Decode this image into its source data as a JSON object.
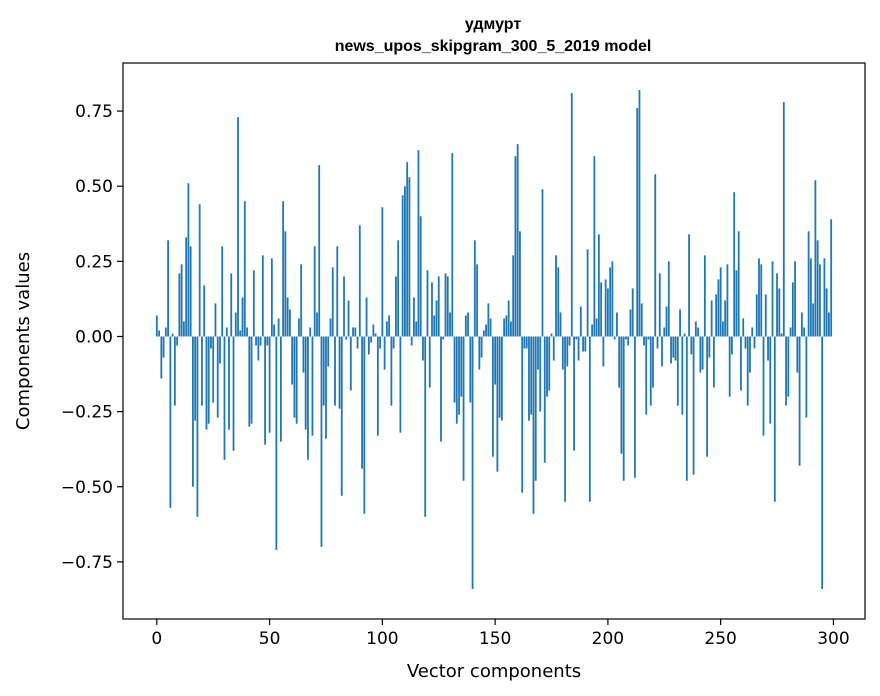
{
  "chart_data": {
    "type": "bar",
    "title": "удмурт",
    "subtitle": "news_upos_skipgram_300_5_2019 model",
    "xlabel": "Vector components",
    "ylabel": "Components values",
    "xlim": [
      -15,
      314
    ],
    "ylim": [
      -0.94,
      0.91
    ],
    "xticks": [
      0,
      50,
      100,
      150,
      200,
      250,
      300
    ],
    "xtick_labels": [
      "0",
      "50",
      "100",
      "150",
      "200",
      "250",
      "300"
    ],
    "yticks": [
      0.75,
      0.5,
      0.25,
      0.0,
      -0.25,
      -0.5,
      -0.75
    ],
    "ytick_labels": [
      "0.75",
      "0.50",
      "0.25",
      "0.00",
      "−0.25",
      "−0.50",
      "−0.75"
    ],
    "grid": false,
    "bar_color": "#1f77b4",
    "x": "indices 0..299",
    "values": [
      0.07,
      0.02,
      -0.14,
      -0.07,
      0.03,
      0.32,
      -0.57,
      0.01,
      -0.23,
      -0.03,
      0.21,
      0.24,
      0.05,
      0.33,
      0.51,
      0.3,
      -0.5,
      -0.28,
      -0.6,
      0.44,
      -0.23,
      0.17,
      -0.31,
      -0.29,
      -0.04,
      -0.22,
      0.11,
      -0.27,
      -0.09,
      0.3,
      -0.41,
      0.03,
      -0.31,
      0.21,
      -0.38,
      0.08,
      0.73,
      0.02,
      0.13,
      0.45,
      0.03,
      -0.3,
      -0.29,
      0.22,
      -0.03,
      -0.08,
      -0.03,
      0.27,
      -0.36,
      -0.03,
      -0.32,
      0.26,
      0.04,
      -0.71,
      0.06,
      -0.35,
      0.45,
      0.35,
      0.13,
      0.09,
      -0.16,
      -0.27,
      -0.29,
      0.06,
      0.24,
      -0.12,
      -0.31,
      -0.41,
      0.03,
      -0.33,
      0.3,
      0.08,
      0.57,
      -0.7,
      -0.23,
      -0.34,
      -0.1,
      0.06,
      0.23,
      -0.23,
      0.3,
      -0.24,
      -0.53,
      0.2,
      -0.01,
      0.12,
      -0.18,
      0.03,
      0.03,
      -0.04,
      0.37,
      -0.44,
      -0.59,
      0.13,
      -0.06,
      -0.02,
      0.04,
      0.01,
      -0.33,
      -0.04,
      0.43,
      -0.11,
      0.05,
      0.07,
      -0.23,
      -0.04,
      0.2,
      0.32,
      -0.32,
      0.47,
      0.5,
      0.58,
      0.53,
      -0.03,
      0.13,
      0.05,
      0.62,
      0.4,
      -0.08,
      -0.6,
      0.22,
      -0.17,
      0.18,
      0.07,
      0.12,
      0.2,
      -0.35,
      -0.01,
      0.21,
      0.2,
      0.08,
      0.61,
      -0.22,
      -0.29,
      -0.26,
      -0.2,
      -0.48,
      0.07,
      0.08,
      -0.22,
      -0.84,
      0.32,
      0.24,
      -0.11,
      -0.07,
      0.02,
      0.04,
      0.11,
      0.06,
      -0.4,
      -0.16,
      -0.45,
      -0.27,
      -0.28,
      0.06,
      0.07,
      0.12,
      0.05,
      0.27,
      0.6,
      0.64,
      0.35,
      -0.52,
      -0.04,
      -0.04,
      -0.28,
      -0.26,
      -0.59,
      -0.48,
      -0.11,
      -0.25,
      0.49,
      -0.42,
      -0.2,
      -0.18,
      0.01,
      -0.08,
      0.27,
      0.23,
      0.08,
      -0.11,
      -0.55,
      -0.1,
      -0.03,
      0.81,
      -0.38,
      -0.01,
      -0.08,
      0.1,
      -0.05,
      -0.05,
      0.29,
      -0.55,
      0.04,
      0.6,
      0.06,
      0.34,
      0.18,
      -0.1,
      0.19,
      0.16,
      0.23,
      0.25,
      -0.01,
      0.08,
      -0.17,
      -0.39,
      -0.48,
      -0.01,
      -0.03,
      0.09,
      0.16,
      -0.47,
      0.76,
      0.82,
      0.11,
      -0.03,
      -0.26,
      -0.01,
      -0.23,
      -0.17,
      0.54,
      -0.04,
      0.21,
      -0.1,
      0.03,
      0.1,
      0.25,
      -0.09,
      -0.07,
      -0.08,
      -0.23,
      0.09,
      -0.26,
      0.01,
      -0.48,
      0.34,
      -0.06,
      -0.46,
      0.05,
      0.03,
      -0.12,
      -0.11,
      0.27,
      -0.4,
      -0.07,
      0.12,
      -0.17,
      0.14,
      0.19,
      0.23,
      0.05,
      0.12,
      0.24,
      -0.2,
      -0.06,
      0.48,
      0.22,
      0.35,
      -0.18,
      0.06,
      -0.04,
      -0.23,
      -0.12,
      0.03,
      -0.04,
      0.14,
      0.26,
      0.24,
      -0.33,
      0.14,
      -0.08,
      -0.29,
      0.25,
      -0.55,
      0.21,
      0.16,
      0.01,
      0.78,
      -0.23,
      -0.2,
      0.03,
      0.18,
      0.25,
      -0.12,
      -0.43,
      0.08,
      0.03,
      -0.27,
      0.35,
      0.26,
      0.11,
      0.52,
      0.32,
      0.24,
      -0.84,
      0.26,
      0.16,
      0.08,
      0.39
    ]
  }
}
